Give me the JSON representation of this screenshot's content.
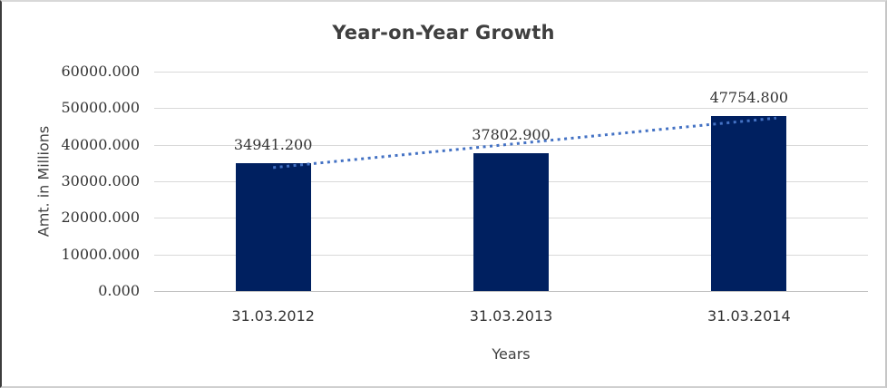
{
  "chart_data": {
    "type": "bar",
    "title": "Year-on-Year Growth",
    "xlabel": "Years",
    "ylabel": "Amt. in Millions",
    "categories": [
      "31.03.2012",
      "31.03.2013",
      "31.03.2014"
    ],
    "values": [
      34941.2,
      37802.9,
      47754.8
    ],
    "data_labels": [
      "34941.200",
      "37802.900",
      "47754.800"
    ],
    "ylim": [
      0,
      60000
    ],
    "ytick_step": 10000,
    "ytick_labels": [
      "0.000",
      "10000.000",
      "20000.000",
      "30000.000",
      "40000.000",
      "50000.000",
      "60000.000"
    ],
    "grid": true,
    "legend": false,
    "trendline": {
      "type": "linear",
      "style": "dotted"
    },
    "colors": {
      "bar": "#002060",
      "trendline": "#4472c4",
      "gridline": "#d9d9d9",
      "axis_line": "#bfbfbf",
      "title_text": "#3f3f3f",
      "tick_text": "#333333"
    }
  }
}
